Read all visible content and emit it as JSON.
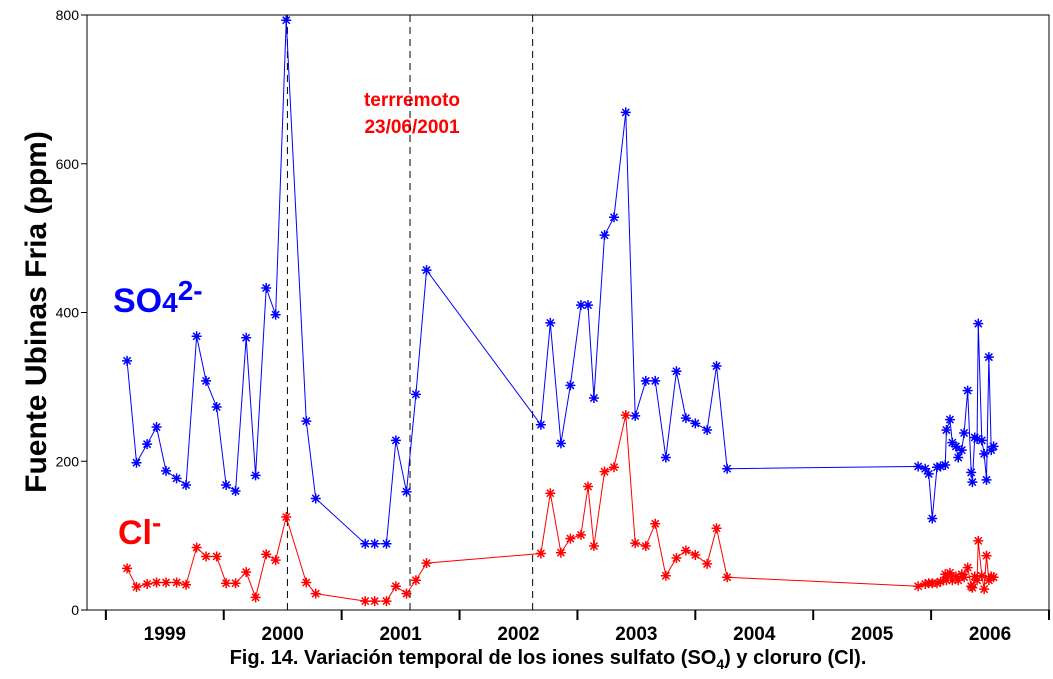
{
  "chart_data": {
    "type": "line",
    "ylabel": "Fuente Ubinas Fria (ppm)",
    "caption": [
      "Fig. 14. Variación temporal de los iones sulfato (SO",
      "4",
      ") y cloruro (Cl)."
    ],
    "xlim": [
      1998.84,
      2007.0
    ],
    "xticks": [
      1999,
      2000,
      2001,
      2002,
      2003,
      2004,
      2005,
      2006,
      2007
    ],
    "year_labels": [
      {
        "value": 1999.5,
        "label": "1999"
      },
      {
        "value": 2000.5,
        "label": "2000"
      },
      {
        "value": 2001.5,
        "label": "2001"
      },
      {
        "value": 2002.5,
        "label": "2002"
      },
      {
        "value": 2003.5,
        "label": "2003"
      },
      {
        "value": 2004.5,
        "label": "2004"
      },
      {
        "value": 2005.5,
        "label": "2005"
      },
      {
        "value": 2006.5,
        "label": "2006"
      }
    ],
    "ylim": [
      0,
      800
    ],
    "yticks": [
      0,
      200,
      400,
      600,
      800
    ],
    "vlines": [
      2000.54,
      2001.58,
      2002.62
    ],
    "annotation": [
      "terrremoto",
      "23/06/2001"
    ],
    "annotation_color": "#ff0000",
    "x": [
      1999.18,
      1999.26,
      1999.35,
      1999.43,
      1999.51,
      1999.6,
      1999.68,
      1999.77,
      1999.85,
      1999.94,
      2000.02,
      2000.1,
      2000.19,
      2000.27,
      2000.36,
      2000.44,
      2000.53,
      2000.7,
      2000.78,
      2001.2,
      2001.28,
      2001.38,
      2001.46,
      2001.55,
      2001.63,
      2001.72,
      2002.69,
      2002.77,
      2002.86,
      2002.94,
      2003.03,
      2003.09,
      2003.14,
      2003.23,
      2003.31,
      2003.41,
      2003.49,
      2003.58,
      2003.66,
      2003.75,
      2003.84,
      2003.92,
      2004.0,
      2004.1,
      2004.18,
      2004.27,
      2005.89,
      2005.95,
      2005.98,
      2006.01,
      2006.05,
      2006.08,
      2006.12,
      2006.13,
      2006.16,
      2006.18,
      2006.21,
      2006.23,
      2006.26,
      2006.28,
      2006.31,
      2006.34,
      2006.35,
      2006.37,
      2006.39,
      2006.4,
      2006.43,
      2006.45,
      2006.47,
      2006.49,
      2006.51,
      2006.53
    ],
    "series": [
      {
        "name": [
          "SO",
          "4",
          "2-"
        ],
        "color": "#0000ff",
        "values": [
          335,
          198,
          223,
          246,
          187,
          177,
          168,
          368,
          308,
          273,
          168,
          160,
          366,
          181,
          433,
          397,
          793,
          254,
          150,
          89,
          89,
          89,
          228,
          159,
          290,
          457,
          249,
          386,
          224,
          302,
          410,
          410,
          285,
          504,
          528,
          669,
          261,
          308,
          308,
          205,
          321,
          258,
          251,
          242,
          328,
          190,
          193,
          190,
          183,
          123,
          192,
          193,
          195,
          242,
          256,
          225,
          220,
          205,
          215,
          238,
          295,
          185,
          172,
          232,
          230,
          385,
          228,
          210,
          175,
          340,
          215,
          220
        ]
      },
      {
        "name": [
          "Cl",
          "-"
        ],
        "color": "#ff0000",
        "values": [
          56,
          31,
          35,
          37,
          37,
          37,
          34,
          84,
          72,
          72,
          36,
          36,
          51,
          17,
          75,
          67,
          125,
          37,
          22,
          12,
          12,
          12,
          32,
          22,
          40,
          63,
          76,
          157,
          77,
          96,
          101,
          166,
          86,
          186,
          192,
          262,
          90,
          86,
          116,
          46,
          70,
          80,
          74,
          62,
          110,
          44,
          32,
          35,
          36,
          36,
          36,
          38,
          48,
          40,
          50,
          40,
          45,
          40,
          48,
          44,
          57,
          32,
          30,
          45,
          40,
          93,
          46,
          28,
          73,
          40,
          45,
          44
        ]
      }
    ]
  }
}
